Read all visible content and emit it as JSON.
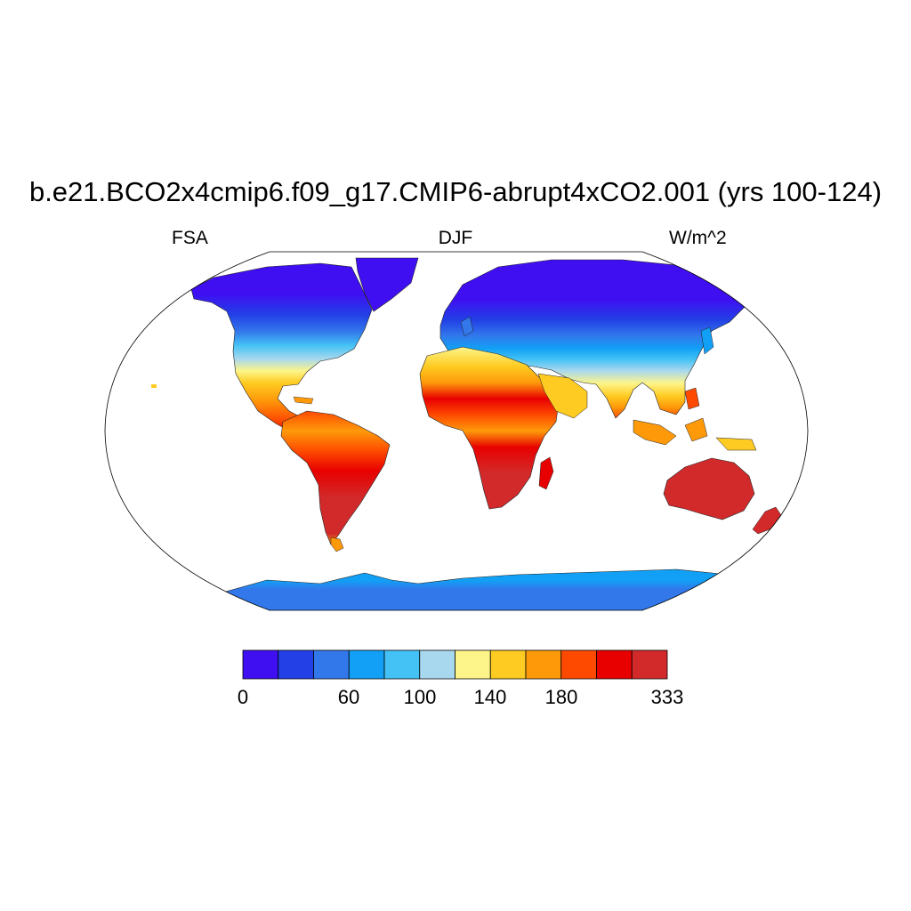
{
  "title": "b.e21.BCO2x4cmip6.f09_g17.CMIP6-abrupt4xCO2.001 (yrs 100-124)",
  "subtitle_left": "FSA",
  "subtitle_center": "DJF",
  "subtitle_right": "W/m^2",
  "colorbar": {
    "colors": [
      "#3f0ff2",
      "#2240e6",
      "#3278eb",
      "#11a0f5",
      "#44c2f5",
      "#a8d8ee",
      "#fdf58a",
      "#fecb22",
      "#fe9a0a",
      "#fe4a00",
      "#e80000",
      "#d22a2a"
    ],
    "labels": [
      "0",
      "60",
      "100",
      "140",
      "180",
      "333"
    ]
  },
  "colors": {
    "polar": "#3f0ff2",
    "subpolar": "#2240e6",
    "midlat": "#3278eb",
    "cool": "#11a0f5",
    "mild": "#44c2f5",
    "temperate": "#a8d8ee",
    "warm": "#fdf58a",
    "hot1": "#fecb22",
    "hot2": "#fe9a0a",
    "hot3": "#fe4a00",
    "tropic": "#e80000",
    "max": "#d22a2a",
    "ocean": "#ffffff",
    "coast": "#222222"
  }
}
